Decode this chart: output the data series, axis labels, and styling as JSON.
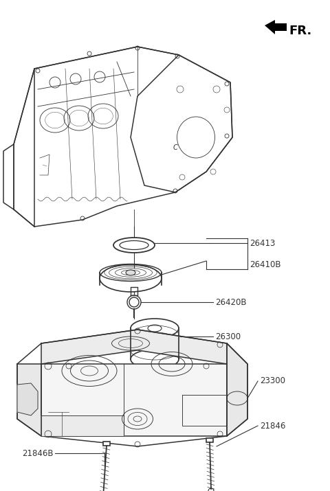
{
  "background_color": "#ffffff",
  "line_color": "#333333",
  "text_color": "#333333",
  "fr_label": "FR.",
  "font_size": 8.5,
  "label_font_size": 8.5,
  "parts": [
    {
      "id": "26413",
      "label": "26413"
    },
    {
      "id": "26410B",
      "label": "26410B"
    },
    {
      "id": "26420B",
      "label": "26420B"
    },
    {
      "id": "26300",
      "label": "26300"
    },
    {
      "id": "23300",
      "label": "23300"
    },
    {
      "id": "21846",
      "label": "21846"
    },
    {
      "id": "21846B",
      "label": "21846B"
    }
  ]
}
